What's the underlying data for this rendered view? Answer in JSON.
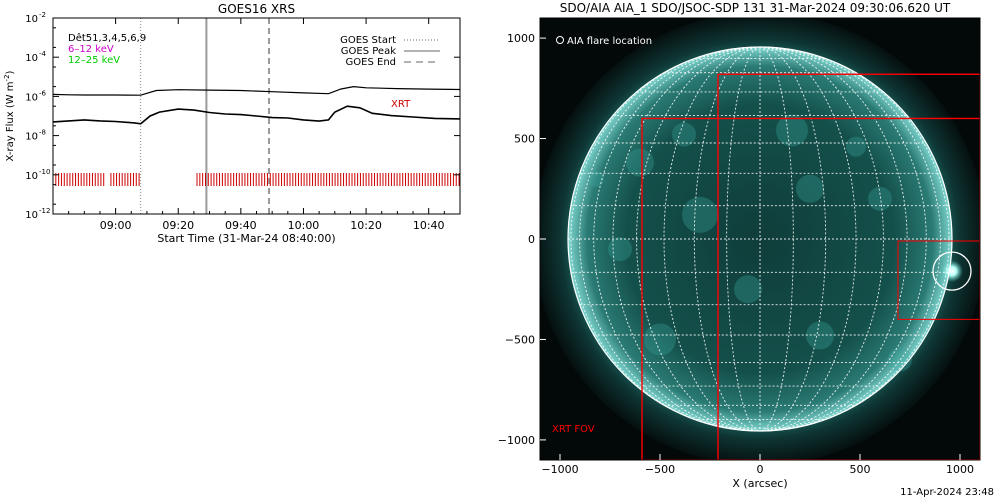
{
  "chart_data": [
    {
      "type": "line",
      "title": "GOES16 XRS",
      "xlabel": "Start Time (31-Mar-24 08:40:00)",
      "ylabel": "X-ray Flux (W m^-2)",
      "ylabel_base": "X-ray Flux (W m",
      "ylabel_exp": "-2",
      "ylabel_close": ")",
      "y_scale": "log",
      "ylim": [
        1e-12,
        0.01
      ],
      "xlim_min": [
        0,
        130
      ],
      "x_ticks": [
        {
          "min": 20,
          "label": "09:00"
        },
        {
          "min": 40,
          "label": "09:20"
        },
        {
          "min": 60,
          "label": "09:40"
        },
        {
          "min": 80,
          "label": "10:00"
        },
        {
          "min": 100,
          "label": "10:20"
        },
        {
          "min": 120,
          "label": "10:40"
        }
      ],
      "y_ticks": [
        {
          "exp": -2,
          "label": "10",
          "sup": "-2"
        },
        {
          "exp": -4,
          "label": "10",
          "sup": "-4"
        },
        {
          "exp": -6,
          "label": "10",
          "sup": "-6"
        },
        {
          "exp": -8,
          "label": "10",
          "sup": "-8"
        },
        {
          "exp": -10,
          "label": "10",
          "sup": "-10"
        },
        {
          "exp": -12,
          "label": "10",
          "sup": "-12"
        }
      ],
      "legend_left": [
        {
          "text": "Dêt51,3,4,5,6,9",
          "color": "#000000"
        },
        {
          "text": "6–12 keV",
          "color": "#cc00cc"
        },
        {
          "text": "12–25 keV",
          "color": "#00cc00"
        }
      ],
      "legend_right": [
        {
          "text": "GOES Start",
          "style": "dotted"
        },
        {
          "text": "GOES Peak",
          "style": "solid"
        },
        {
          "text": "GOES End",
          "style": "dashed"
        }
      ],
      "markers": {
        "start": 28,
        "peak": 49,
        "end": 69
      },
      "xrt_label": "XRT",
      "xrt_color": "#cc0000",
      "xrt_segments": [
        [
          0,
          16.5
        ],
        [
          18.5,
          28
        ],
        [
          46,
          130
        ]
      ],
      "series": [
        {
          "points": [
            [
              0,
              -5.9
            ],
            [
              5,
              -5.92
            ],
            [
              10,
              -5.93
            ],
            [
              20,
              -5.93
            ],
            [
              28,
              -5.94
            ],
            [
              33,
              -5.7
            ],
            [
              40,
              -5.66
            ],
            [
              50,
              -5.68
            ],
            [
              60,
              -5.7
            ],
            [
              70,
              -5.76
            ],
            [
              80,
              -5.82
            ],
            [
              88,
              -5.86
            ],
            [
              92,
              -5.62
            ],
            [
              96,
              -5.5
            ],
            [
              100,
              -5.56
            ],
            [
              110,
              -5.6
            ],
            [
              120,
              -5.63
            ],
            [
              130,
              -5.65
            ]
          ],
          "color": "#000000"
        },
        {
          "points": [
            [
              0,
              -7.3
            ],
            [
              5,
              -7.25
            ],
            [
              10,
              -7.2
            ],
            [
              15,
              -7.25
            ],
            [
              20,
              -7.28
            ],
            [
              26,
              -7.35
            ],
            [
              28,
              -7.4
            ],
            [
              31,
              -7.0
            ],
            [
              34,
              -6.8
            ],
            [
              40,
              -6.65
            ],
            [
              45,
              -6.7
            ],
            [
              50,
              -6.82
            ],
            [
              55,
              -6.9
            ],
            [
              60,
              -6.93
            ],
            [
              65,
              -7.0
            ],
            [
              70,
              -7.08
            ],
            [
              75,
              -7.1
            ],
            [
              80,
              -7.2
            ],
            [
              85,
              -7.26
            ],
            [
              88,
              -7.2
            ],
            [
              90,
              -6.8
            ],
            [
              94,
              -6.5
            ],
            [
              98,
              -6.58
            ],
            [
              102,
              -6.86
            ],
            [
              108,
              -6.98
            ],
            [
              115,
              -7.05
            ],
            [
              122,
              -7.12
            ],
            [
              130,
              -7.15
            ]
          ],
          "color": "#000000"
        }
      ]
    },
    {
      "type": "scatter",
      "title": "SDO/AIA AIA_1 SDO/JSOC-SDP 131 31-Mar-2024 09:30:06.620 UT",
      "xlabel": "X (arcsec)",
      "ylabel": "",
      "xlim": [
        -1100,
        1100
      ],
      "ylim": [
        -1100,
        1100
      ],
      "x_ticks": [
        -1000,
        -500,
        0,
        500,
        1000
      ],
      "y_ticks": [
        -1000,
        -500,
        0,
        500,
        1000
      ],
      "solar_radius_arcsec": 960,
      "legend": "AIA flare location",
      "flare_location": {
        "x": 960,
        "y": -160
      },
      "fov_label": "XRT FOV",
      "fov_color": "#ff0000",
      "fov_boxes": [
        {
          "x0": -590,
          "x1": 1100,
          "y0": -1100,
          "y1": 600
        },
        {
          "x0": -210,
          "x1": 1100,
          "y0": -1100,
          "y1": 820
        },
        {
          "x0": 690,
          "x1": 1100,
          "y0": -400,
          "y1": -10
        }
      ]
    }
  ],
  "footer": "11-Apr-2024 23:48"
}
